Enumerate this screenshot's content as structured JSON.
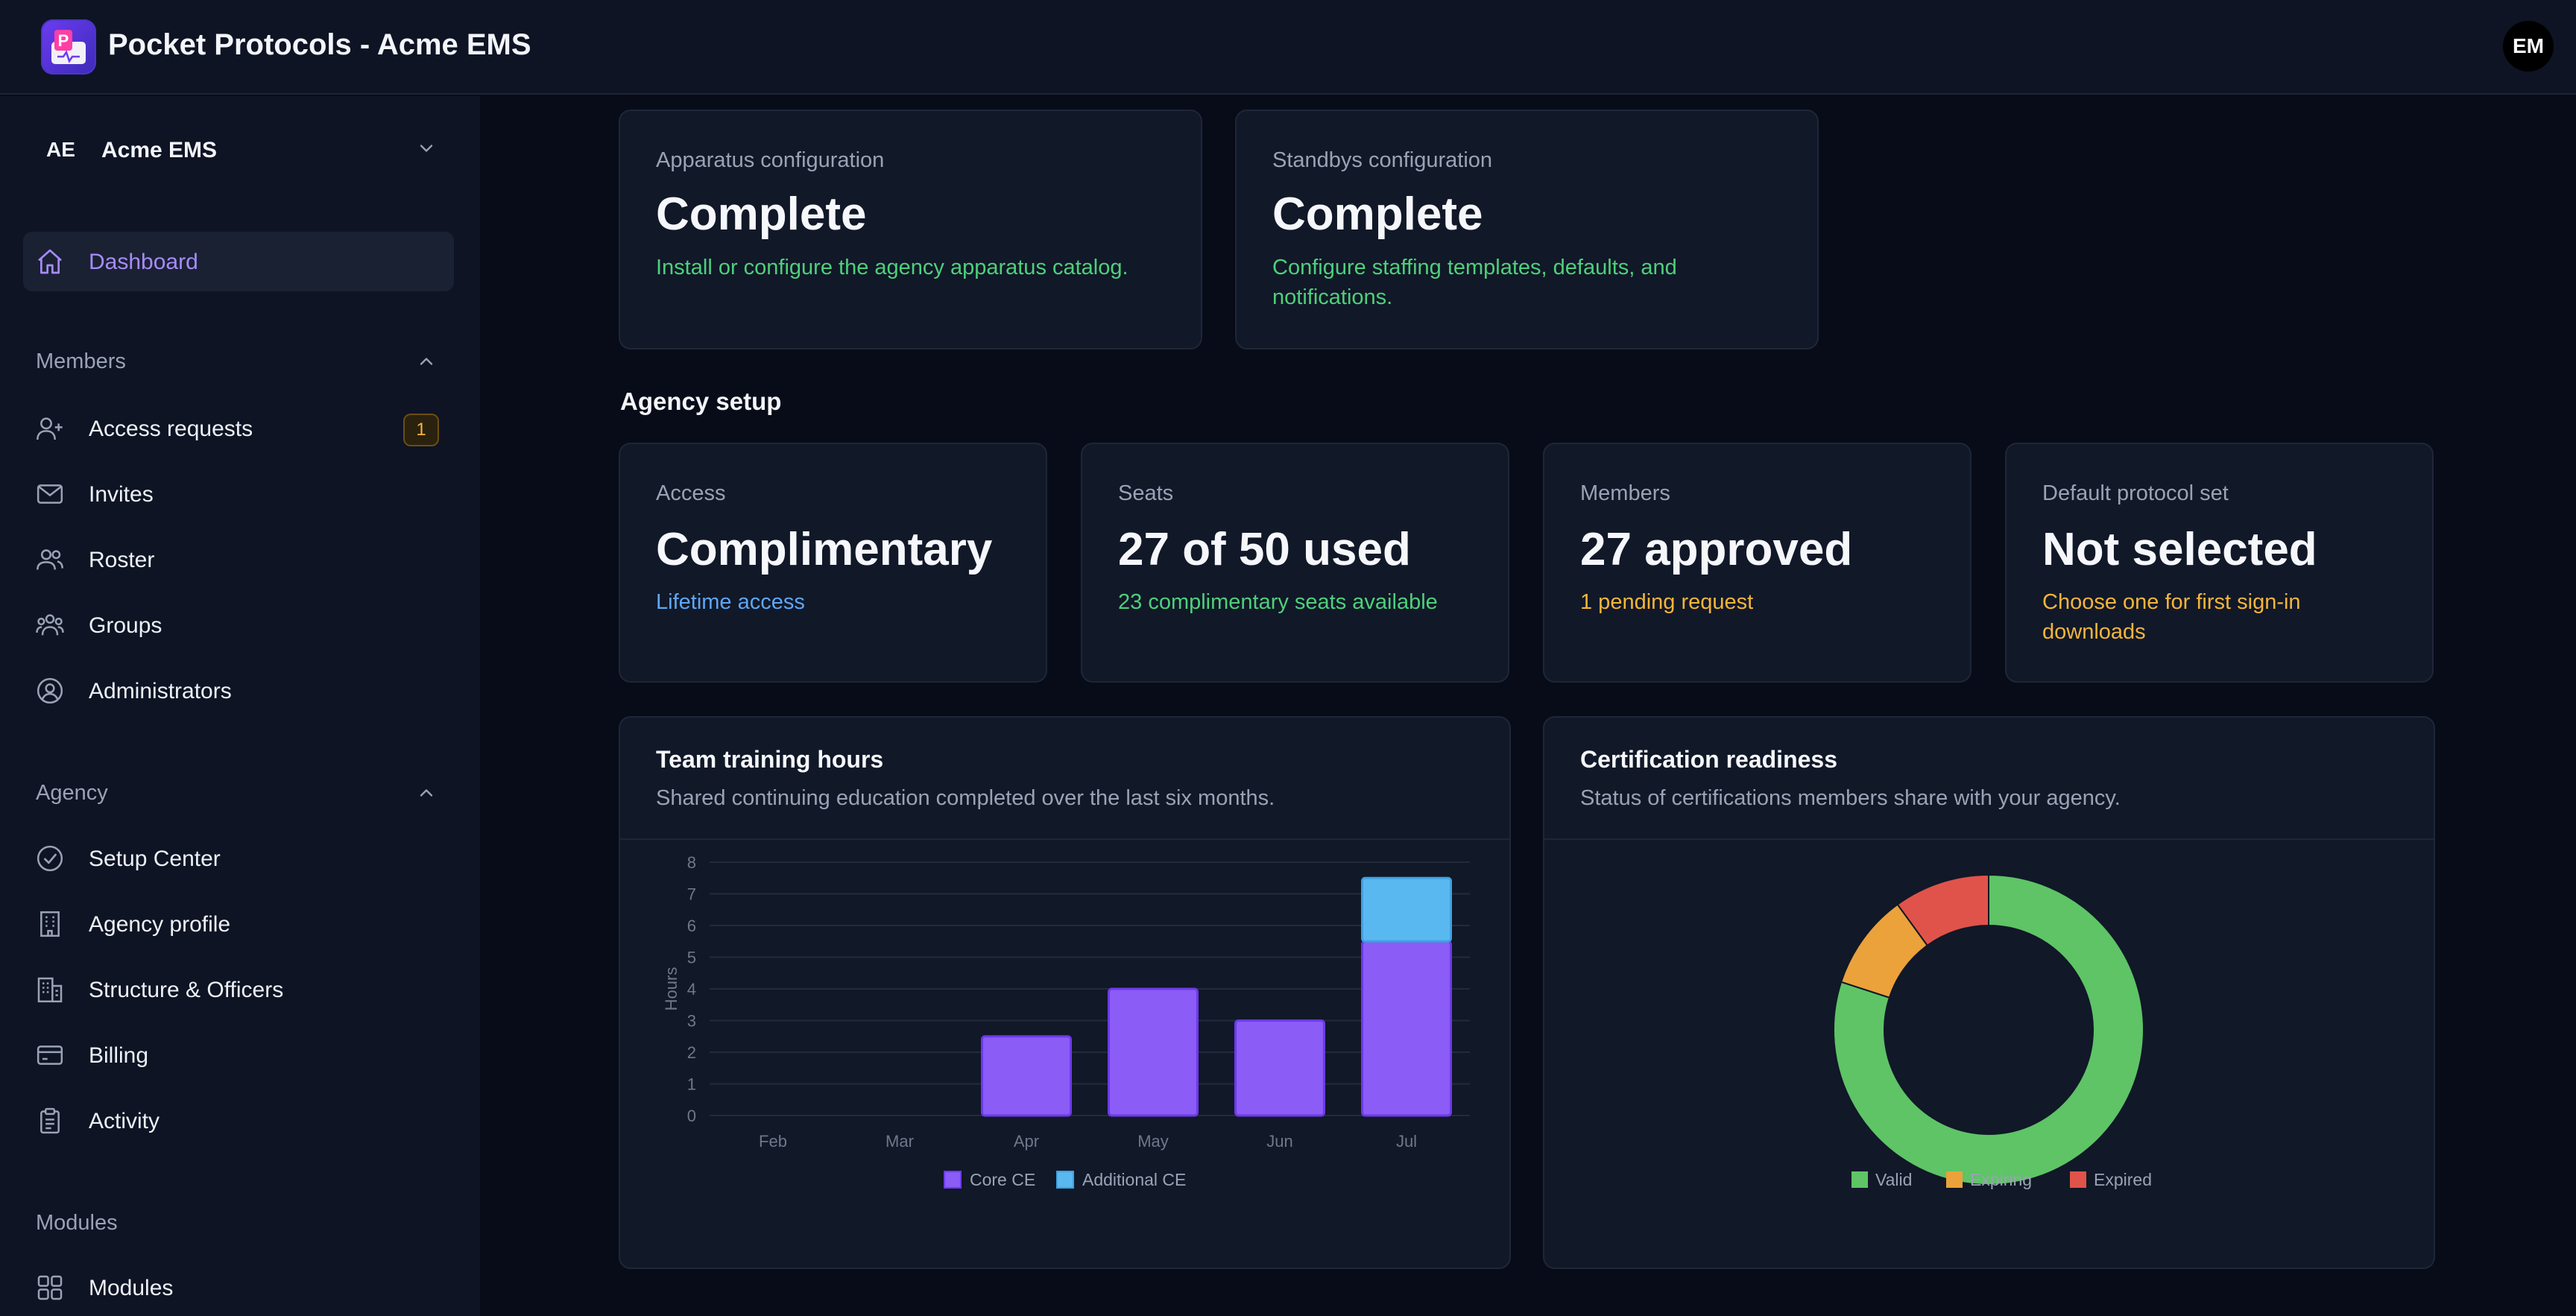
{
  "app": {
    "title": "Pocket Protocols - Acme EMS",
    "user_initials": "EM"
  },
  "agency_switcher": {
    "abbr": "AE",
    "name": "Acme EMS"
  },
  "sidebar": {
    "dashboard": {
      "label": "Dashboard",
      "icon": "home-icon"
    },
    "sections": [
      {
        "label": "Members",
        "items": [
          {
            "label": "Access requests",
            "icon": "user-plus-icon",
            "badge": "1"
          },
          {
            "label": "Invites",
            "icon": "mail-icon"
          },
          {
            "label": "Roster",
            "icon": "users-icon"
          },
          {
            "label": "Groups",
            "icon": "user-group-icon"
          },
          {
            "label": "Administrators",
            "icon": "user-circle-icon"
          }
        ]
      },
      {
        "label": "Agency",
        "items": [
          {
            "label": "Setup Center",
            "icon": "check-circle-icon"
          },
          {
            "label": "Agency profile",
            "icon": "building-icon"
          },
          {
            "label": "Structure & Officers",
            "icon": "buildings-icon"
          },
          {
            "label": "Billing",
            "icon": "credit-card-icon"
          },
          {
            "label": "Activity",
            "icon": "clipboard-icon"
          }
        ]
      },
      {
        "label": "Modules",
        "items": [
          {
            "label": "Modules",
            "icon": "grid-icon"
          }
        ]
      }
    ]
  },
  "config_cards": [
    {
      "label": "Apparatus configuration",
      "value": "Complete",
      "note": "Install or configure the agency apparatus catalog."
    },
    {
      "label": "Standbys configuration",
      "value": "Complete",
      "note": "Configure staffing templates, defaults, and notifications."
    }
  ],
  "agency_setup": {
    "title": "Agency setup",
    "cards": [
      {
        "label": "Access",
        "value": "Complimentary",
        "note": "Lifetime access",
        "note_color": "#5ea7f5"
      },
      {
        "label": "Seats",
        "value": "27 of 50 used",
        "note": "23 complimentary seats available",
        "note_color": "#4ed07a"
      },
      {
        "label": "Members",
        "value": "27 approved",
        "note": "1 pending request",
        "note_color": "#f5b53a"
      },
      {
        "label": "Default protocol set",
        "value": "Not selected",
        "note": "Choose one for first sign-in downloads",
        "note_color": "#f5b53a"
      }
    ]
  },
  "training_panel": {
    "title": "Team training hours",
    "subtitle": "Shared continuing education completed over the last six months."
  },
  "certification_panel": {
    "title": "Certification readiness",
    "subtitle": "Status of certifications members share with your agency."
  },
  "chart_data": [
    {
      "type": "bar",
      "stacked": true,
      "categories": [
        "Feb",
        "Mar",
        "Apr",
        "May",
        "Jun",
        "Jul"
      ],
      "series": [
        {
          "name": "Core CE",
          "color": "#8b5cf6",
          "values": [
            0,
            0,
            2.5,
            4,
            3,
            5.5
          ]
        },
        {
          "name": "Additional CE",
          "color": "#5ab8f0",
          "values": [
            0,
            0,
            0,
            0,
            0,
            2
          ]
        }
      ],
      "ylabel": "Hours",
      "ylim": [
        0,
        8
      ],
      "yticks": [
        0,
        1,
        2,
        3,
        4,
        5,
        6,
        7,
        8
      ],
      "grid": true,
      "legend": "bottom"
    },
    {
      "type": "pie",
      "donut": true,
      "slices": [
        {
          "name": "Valid",
          "value": 80,
          "color": "#5ec466"
        },
        {
          "name": "Expiring",
          "value": 10,
          "color": "#eba23a"
        },
        {
          "name": "Expired",
          "value": 10,
          "color": "#e0534a"
        }
      ],
      "legend": "bottom"
    }
  ]
}
